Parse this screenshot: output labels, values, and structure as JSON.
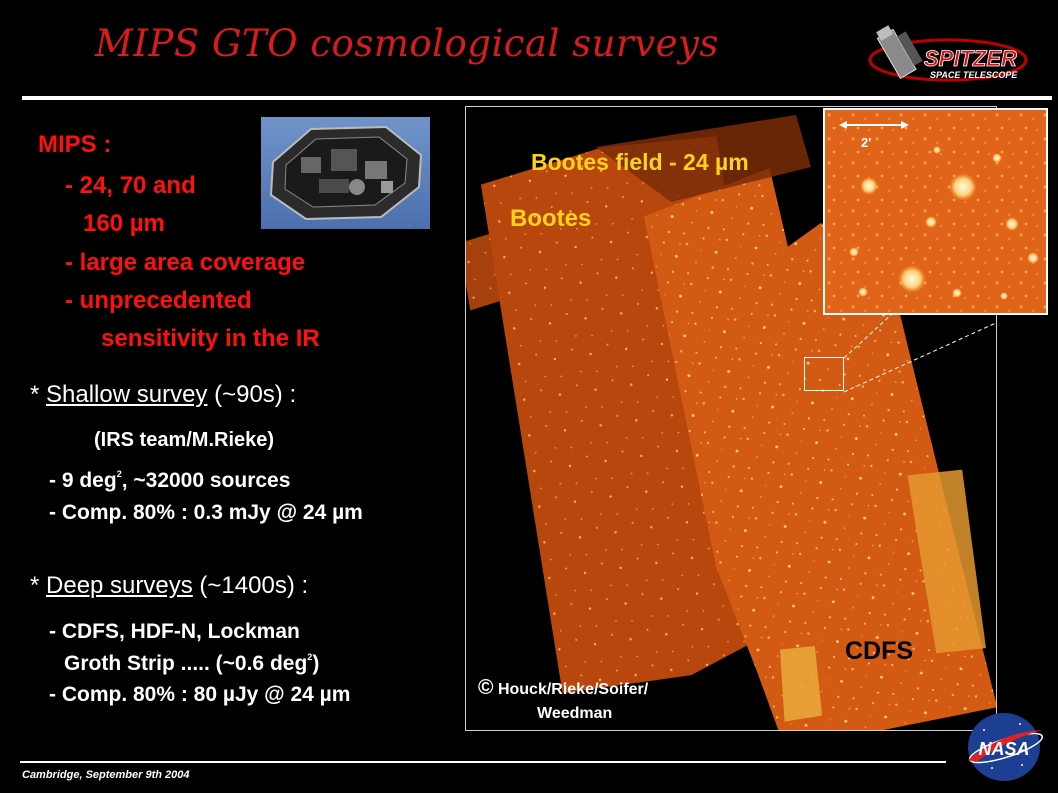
{
  "title": "MIPS GTO cosmological surveys",
  "logo_spitzer": {
    "word": "SPITZER",
    "sub": "SPACE TELESCOPE"
  },
  "logo_nasa": "NASA",
  "mips": {
    "heading": "MIPS :",
    "lines": [
      "- 24, 70 and",
      "160 µm",
      "- large area coverage",
      "- unprecedented",
      "sensitivity in the IR"
    ]
  },
  "instrument_image": {
    "caption": "..."
  },
  "shallow": {
    "bullet": "*",
    "name": "Shallow survey",
    "time": "(~90s) :",
    "team": "(IRS team/M.Rieke)",
    "line1_pre": "- 9 deg",
    "line1_sup": "2",
    "line1_post": ", ~32000 sources",
    "line2": "- Comp. 80% : 0.3 mJy @ 24 µm"
  },
  "deep": {
    "bullet": "*",
    "name": "Deep surveys",
    "time": "(~1400s) :",
    "line1": "- CDFS, HDF-N, Lockman",
    "line2_pre": "Groth Strip ..... (~0.6 deg",
    "line2_sup": "2",
    "line2_post": ")",
    "line3": "- Comp. 80% : 80 µJy @ 24 µm"
  },
  "image_panel": {
    "field_title": "Bootes field - 24 µm",
    "label_bootes": "Bootes",
    "label_cdfs": "CDFS",
    "credit_symbol": "©",
    "credit_line1": "Houck/Rieke/Soifer/",
    "credit_line2": "Weedman",
    "scale_label": "2'"
  },
  "footer": "Cambridge, September 9th 2004",
  "colors": {
    "title_red": "#d81b1b",
    "text_red": "#ff1010",
    "label_yellow": "#ffd21a",
    "map_orange": "#e06a1a"
  }
}
